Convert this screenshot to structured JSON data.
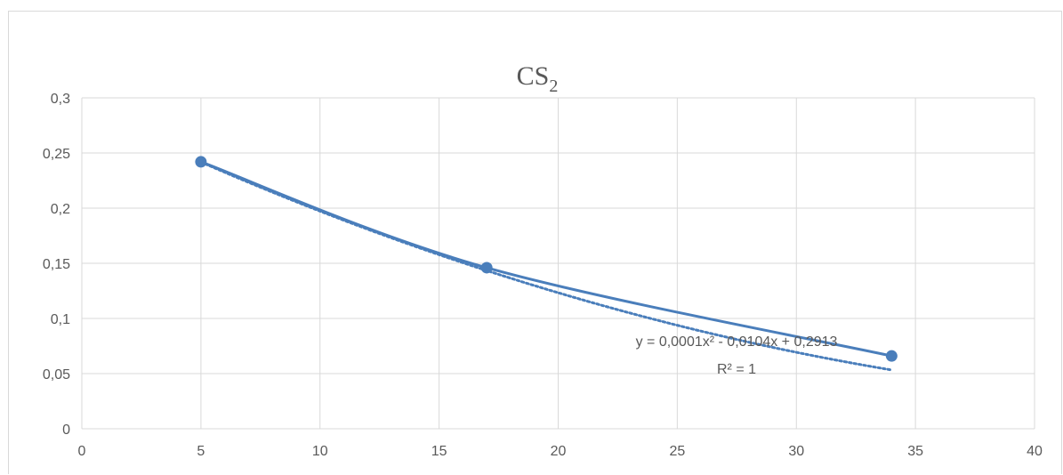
{
  "chart_data": {
    "type": "scatter",
    "title": "CS",
    "title_subscript": "2",
    "xlabel": "",
    "ylabel": "",
    "xlim": [
      0,
      40
    ],
    "ylim": [
      0,
      0.3
    ],
    "x_ticks": [
      0,
      5,
      10,
      15,
      20,
      25,
      30,
      35,
      40
    ],
    "x_tick_labels": [
      "0",
      "5",
      "10",
      "15",
      "20",
      "25",
      "30",
      "35",
      "40"
    ],
    "y_ticks": [
      0,
      0.05,
      0.1,
      0.15,
      0.2,
      0.25,
      0.3
    ],
    "y_tick_labels": [
      "0",
      "0,05",
      "0,1",
      "0,15",
      "0,2",
      "0,25",
      "0,3"
    ],
    "grid": true,
    "series": [
      {
        "x": [
          5,
          17,
          34
        ],
        "y": [
          0.242,
          0.146,
          0.066
        ],
        "line": "smooth",
        "markers": true,
        "color": "#4a7ebb"
      }
    ],
    "trendline": {
      "kind": "polynomial",
      "order": 2,
      "coefficients": [
        0.0001,
        -0.0104,
        0.2913
      ],
      "style": "dotted",
      "color": "#4a7ebb",
      "equation_label": "y = 0,0001x² - 0,0104x + 0,2913",
      "r2_label": "R² = 1"
    }
  }
}
